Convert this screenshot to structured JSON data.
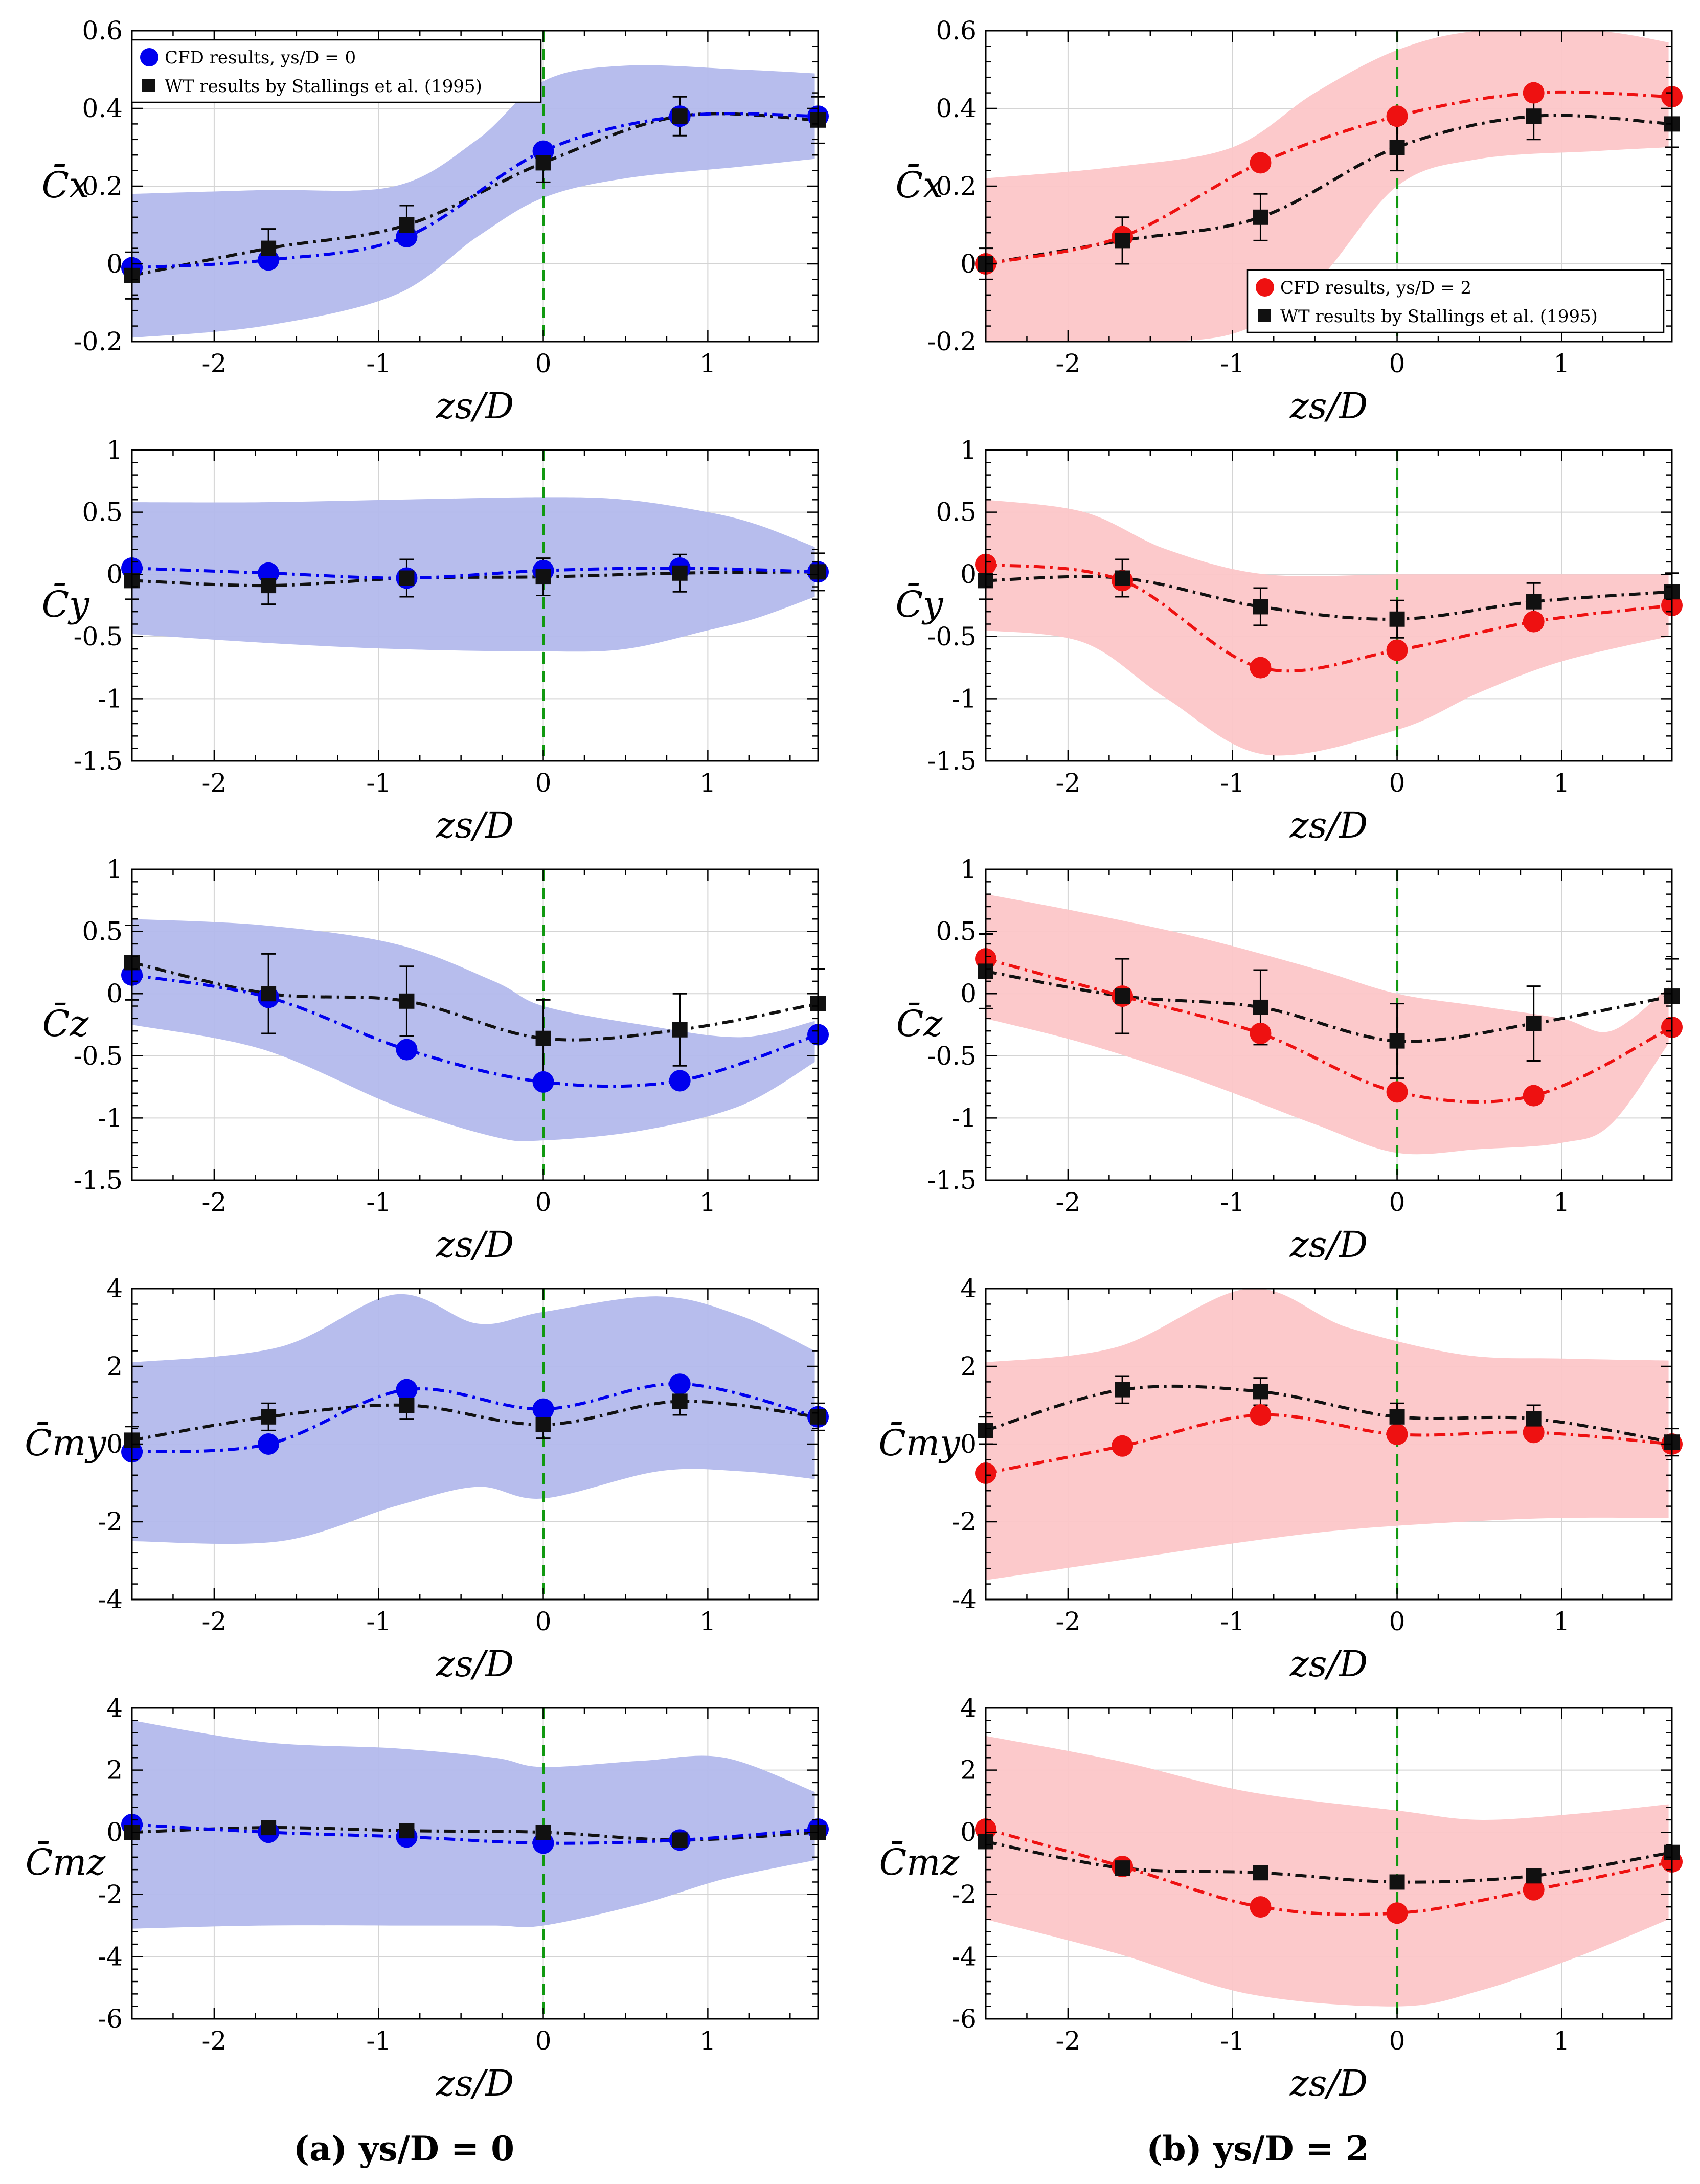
{
  "chart_data": [
    {
      "type": "line",
      "id": "a0",
      "column": 0,
      "row": 0,
      "ylabel": "C̄x",
      "xlabel": "zs/D",
      "ylim": [
        -0.2,
        0.6
      ],
      "yticks": [
        -0.2,
        0,
        0.2,
        0.4,
        0.6
      ],
      "ytick_labels": [
        "-0.2",
        "0",
        "0.2",
        "0.4",
        "0.6"
      ],
      "band_upper": [
        0.18,
        0.19,
        0.2,
        0.32,
        0.47,
        0.51,
        0.5,
        0.49
      ],
      "band_lower": [
        -0.19,
        -0.16,
        -0.08,
        0.07,
        0.17,
        0.22,
        0.25,
        0.27
      ],
      "band_x": [
        -2.5,
        -1.7,
        -0.9,
        -0.4,
        0,
        0.5,
        1.2,
        1.65
      ],
      "series": [
        {
          "name": "CFD results, ys/D = 0",
          "values": [
            -0.01,
            0.01,
            0.07,
            0.29,
            0.38,
            0.38
          ]
        },
        {
          "name": "WT results by Stallings et al. (1995)",
          "values": [
            -0.03,
            0.04,
            0.1,
            0.26,
            0.38,
            0.37
          ],
          "err": [
            0.06,
            0.05,
            0.05,
            0.05,
            0.05,
            0.06
          ]
        }
      ]
    },
    {
      "type": "line",
      "id": "b0",
      "column": 1,
      "row": 0,
      "ylabel": "C̄x",
      "xlabel": "zs/D",
      "ylim": [
        -0.2,
        0.6
      ],
      "yticks": [
        -0.2,
        0,
        0.2,
        0.4,
        0.6
      ],
      "ytick_labels": [
        "-0.2",
        "0",
        "0.2",
        "0.4",
        "0.6"
      ],
      "band_upper": [
        0.22,
        0.25,
        0.3,
        0.44,
        0.55,
        0.6,
        0.6,
        0.57
      ],
      "band_lower": [
        -0.2,
        -0.2,
        -0.18,
        -0.05,
        0.2,
        0.27,
        0.29,
        0.3
      ],
      "band_x": [
        -2.5,
        -1.7,
        -1.0,
        -0.5,
        0,
        0.5,
        1.2,
        1.65
      ],
      "series": [
        {
          "name": "CFD results, ys/D = 2",
          "values": [
            0.0,
            0.07,
            0.26,
            0.38,
            0.44,
            0.43
          ]
        },
        {
          "name": "WT results by Stallings et al. (1995)",
          "values": [
            0.0,
            0.06,
            0.12,
            0.3,
            0.38,
            0.36
          ],
          "err": [
            0.04,
            0.06,
            0.06,
            0.06,
            0.06,
            0.06
          ]
        }
      ]
    },
    {
      "type": "line",
      "id": "a1",
      "column": 0,
      "row": 1,
      "ylabel": "C̄y",
      "xlabel": "zs/D",
      "ylim": [
        -1.5,
        1
      ],
      "yticks": [
        -1.5,
        -1,
        -0.5,
        0,
        0.5,
        1
      ],
      "ytick_labels": [
        "-1.5",
        "-1",
        "-0.5",
        "0",
        "0.5",
        "1"
      ],
      "band_upper": [
        0.58,
        0.58,
        0.6,
        0.62,
        0.6,
        0.5,
        0.4,
        0.22
      ],
      "band_lower": [
        -0.48,
        -0.55,
        -0.6,
        -0.62,
        -0.6,
        -0.45,
        -0.35,
        -0.18
      ],
      "band_x": [
        -2.5,
        -1.7,
        -0.9,
        0,
        0.5,
        1.0,
        1.3,
        1.65
      ],
      "series": [
        {
          "name": "CFD results, ys/D = 0",
          "values": [
            0.05,
            0.01,
            -0.03,
            0.03,
            0.05,
            0.02
          ]
        },
        {
          "name": "WT results by Stallings et al. (1995)",
          "values": [
            -0.05,
            -0.09,
            -0.03,
            -0.02,
            0.01,
            0.02
          ],
          "err": [
            0.15,
            0.15,
            0.15,
            0.15,
            0.15,
            0.15
          ]
        }
      ]
    },
    {
      "type": "line",
      "id": "b1",
      "column": 1,
      "row": 1,
      "ylabel": "C̄y",
      "xlabel": "zs/D",
      "ylim": [
        -1.5,
        1
      ],
      "yticks": [
        -1.5,
        -1,
        -0.5,
        0,
        0.5,
        1
      ],
      "ytick_labels": [
        "-1.5",
        "-1",
        "-0.5",
        "0",
        "0.5",
        "1"
      ],
      "band_upper": [
        0.6,
        0.5,
        0.2,
        0.0,
        0.0,
        0.0,
        0.0,
        0.0
      ],
      "band_lower": [
        -0.45,
        -0.55,
        -1.0,
        -1.45,
        -1.25,
        -0.95,
        -0.7,
        -0.5
      ],
      "band_x": [
        -2.5,
        -1.9,
        -1.4,
        -0.8,
        0,
        0.5,
        1.0,
        1.65
      ],
      "series": [
        {
          "name": "CFD results, ys/D = 2",
          "values": [
            0.08,
            -0.05,
            -0.75,
            -0.61,
            -0.38,
            -0.25
          ]
        },
        {
          "name": "WT results by Stallings et al. (1995)",
          "values": [
            -0.05,
            -0.03,
            -0.26,
            -0.36,
            -0.22,
            -0.14
          ],
          "err": [
            0.15,
            0.15,
            0.15,
            0.15,
            0.15,
            0.15
          ]
        }
      ]
    },
    {
      "type": "line",
      "id": "a2",
      "column": 0,
      "row": 2,
      "ylabel": "C̄z",
      "xlabel": "zs/D",
      "ylim": [
        -1.5,
        1
      ],
      "yticks": [
        -1.5,
        -1,
        -0.5,
        0,
        0.5,
        1
      ],
      "ytick_labels": [
        "-1.5",
        "-1",
        "-0.5",
        "0",
        "0.5",
        "1"
      ],
      "band_upper": [
        0.6,
        0.55,
        0.4,
        0.1,
        -0.1,
        -0.25,
        -0.35,
        -0.22
      ],
      "band_lower": [
        -0.25,
        -0.45,
        -0.9,
        -1.15,
        -1.18,
        -1.1,
        -0.9,
        -0.55
      ],
      "band_x": [
        -2.5,
        -1.7,
        -0.9,
        -0.3,
        0,
        0.6,
        1.2,
        1.65
      ],
      "series": [
        {
          "name": "CFD results, ys/D = 0",
          "values": [
            0.15,
            -0.03,
            -0.45,
            -0.71,
            -0.7,
            -0.33
          ]
        },
        {
          "name": "WT results by Stallings et al. (1995)",
          "values": [
            0.25,
            0.0,
            -0.06,
            -0.36,
            -0.29,
            -0.08
          ],
          "err": [
            0.3,
            0.32,
            0.28,
            0.31,
            0.29,
            0.28
          ]
        }
      ]
    },
    {
      "type": "line",
      "id": "b2",
      "column": 1,
      "row": 2,
      "ylabel": "C̄z",
      "xlabel": "zs/D",
      "ylim": [
        -1.5,
        1
      ],
      "yticks": [
        -1.5,
        -1,
        -0.5,
        0,
        0.5,
        1
      ],
      "ytick_labels": [
        "-1.5",
        "-1",
        "-0.5",
        "0",
        "0.5",
        "1"
      ],
      "band_upper": [
        0.8,
        0.65,
        0.45,
        0.2,
        0.0,
        -0.1,
        -0.2,
        -0.3,
        0.05
      ],
      "band_lower": [
        -0.2,
        -0.4,
        -0.7,
        -1.05,
        -1.28,
        -1.25,
        -1.2,
        -1.05,
        -0.4
      ],
      "band_x": [
        -2.5,
        -1.9,
        -1.2,
        -0.5,
        0,
        0.5,
        1.0,
        1.3,
        1.65
      ],
      "series": [
        {
          "name": "CFD results, ys/D = 2",
          "values": [
            0.28,
            -0.02,
            -0.32,
            -0.79,
            -0.82,
            -0.27
          ]
        },
        {
          "name": "WT results by Stallings et al. (1995)",
          "values": [
            0.18,
            -0.02,
            -0.11,
            -0.38,
            -0.24,
            -0.02
          ],
          "err": [
            0.3,
            0.3,
            0.3,
            0.3,
            0.3,
            0.3
          ]
        }
      ]
    },
    {
      "type": "line",
      "id": "a3",
      "column": 0,
      "row": 3,
      "ylabel": "C̄my",
      "xlabel": "zs/D",
      "ylim": [
        -4,
        4
      ],
      "yticks": [
        -4,
        -2,
        0,
        2,
        4
      ],
      "ytick_labels": [
        "-4",
        "-2",
        "0",
        "2",
        "4"
      ],
      "band_upper": [
        2.1,
        2.5,
        3.85,
        3.1,
        3.4,
        3.8,
        3.3,
        2.4
      ],
      "band_lower": [
        -2.5,
        -2.5,
        -1.6,
        -1.1,
        -1.4,
        -0.7,
        -0.7,
        -0.9
      ],
      "band_x": [
        -2.5,
        -1.6,
        -0.9,
        -0.4,
        0,
        0.7,
        1.2,
        1.65
      ],
      "series": [
        {
          "name": "CFD results, ys/D = 0",
          "values": [
            -0.2,
            0.0,
            1.4,
            0.9,
            1.55,
            0.7
          ]
        },
        {
          "name": "WT results by Stallings et al. (1995)",
          "values": [
            0.1,
            0.7,
            1.0,
            0.5,
            1.1,
            0.7
          ],
          "err": [
            0.35,
            0.35,
            0.35,
            0.35,
            0.35,
            0.35
          ]
        }
      ]
    },
    {
      "type": "line",
      "id": "b3",
      "column": 1,
      "row": 3,
      "ylabel": "C̄my",
      "xlabel": "zs/D",
      "ylim": [
        -4,
        4
      ],
      "yticks": [
        -4,
        -2,
        0,
        2,
        4
      ],
      "ytick_labels": [
        "-4",
        "-2",
        "0",
        "2",
        "4"
      ],
      "band_upper": [
        2.1,
        2.5,
        4.0,
        3.0,
        2.3,
        2.2,
        2.15
      ],
      "band_lower": [
        -3.5,
        -3.0,
        -2.5,
        -2.2,
        -2.0,
        -1.9,
        -1.9
      ],
      "band_x": [
        -2.5,
        -1.7,
        -0.9,
        -0.3,
        0.4,
        1.0,
        1.65
      ],
      "series": [
        {
          "name": "CFD results, ys/D = 2",
          "values": [
            -0.75,
            -0.05,
            0.75,
            0.25,
            0.3,
            0.0
          ]
        },
        {
          "name": "WT results by Stallings et al. (1995)",
          "values": [
            0.35,
            1.4,
            1.35,
            0.7,
            0.65,
            0.05
          ],
          "err": [
            0.35,
            0.35,
            0.35,
            0.35,
            0.35,
            0.35
          ]
        }
      ]
    },
    {
      "type": "line",
      "id": "a4",
      "column": 0,
      "row": 4,
      "ylabel": "C̄mz",
      "xlabel": "zs/D",
      "ylim": [
        -6,
        4
      ],
      "yticks": [
        -6,
        -4,
        -2,
        0,
        2,
        4
      ],
      "ytick_labels": [
        "-6",
        "-4",
        "-2",
        "0",
        "2",
        "4"
      ],
      "band_upper": [
        3.6,
        2.9,
        2.7,
        2.4,
        2.1,
        2.3,
        2.4,
        1.3
      ],
      "band_lower": [
        -3.1,
        -3.0,
        -3.0,
        -3.0,
        -3.0,
        -2.3,
        -1.5,
        -0.9
      ],
      "band_x": [
        -2.5,
        -1.7,
        -0.9,
        -0.3,
        0,
        0.6,
        1.1,
        1.65
      ],
      "series": [
        {
          "name": "CFD results, ys/D = 0",
          "values": [
            0.25,
            0.0,
            -0.15,
            -0.35,
            -0.25,
            0.1
          ]
        },
        {
          "name": "WT results by Stallings et al. (1995)",
          "values": [
            0.0,
            0.15,
            0.05,
            0.0,
            -0.25,
            0.0
          ],
          "err": [
            0.2,
            0.2,
            0.2,
            0.2,
            0.2,
            0.2
          ]
        }
      ]
    },
    {
      "type": "line",
      "id": "b4",
      "column": 1,
      "row": 4,
      "ylabel": "C̄mz",
      "xlabel": "zs/D",
      "ylim": [
        -6,
        4
      ],
      "yticks": [
        -6,
        -4,
        -2,
        0,
        2,
        4
      ],
      "ytick_labels": [
        "-6",
        "-4",
        "-2",
        "0",
        "2",
        "4"
      ],
      "band_upper": [
        3.1,
        2.3,
        1.3,
        0.7,
        0.4,
        0.6,
        0.9
      ],
      "band_lower": [
        -2.8,
        -3.9,
        -5.2,
        -5.6,
        -5.1,
        -4.0,
        -2.8
      ],
      "band_x": [
        -2.5,
        -1.7,
        -0.9,
        0,
        0.5,
        1.1,
        1.65
      ],
      "series": [
        {
          "name": "CFD results, ys/D = 2",
          "values": [
            0.1,
            -1.1,
            -2.4,
            -2.6,
            -1.85,
            -0.95
          ]
        },
        {
          "name": "WT results by Stallings et al. (1995)",
          "values": [
            -0.3,
            -1.15,
            -1.3,
            -1.6,
            -1.4,
            -0.65
          ],
          "err": [
            0.2,
            0.2,
            0.2,
            0.2,
            0.2,
            0.2
          ]
        }
      ]
    }
  ],
  "shared": {
    "x_points": [
      -2.5,
      -1.67,
      -0.83,
      0,
      0.83,
      1.67
    ],
    "xlim": [
      -2.5,
      1.67
    ],
    "xticks": [
      -2,
      -1,
      0,
      1
    ],
    "xtick_labels": [
      "-2",
      "-1",
      "0",
      "1"
    ],
    "vline_x": 0,
    "colors": {
      "cfd_a": "#0000ee",
      "cfd_b": "#ee1111",
      "band_a": "#b3b9ec",
      "band_b": "#fcc6c8",
      "wt": "#111111",
      "vline": "#119911"
    }
  },
  "legend_a": {
    "cfd": "CFD results, ys/D = 0",
    "wt": "WT results by Stallings et al. (1995)"
  },
  "legend_b": {
    "cfd": "CFD results, ys/D = 2",
    "wt": "WT results by Stallings et al. (1995)"
  },
  "captions": {
    "a": "(a) ys/D = 0",
    "b": "(b) ys/D = 2"
  }
}
